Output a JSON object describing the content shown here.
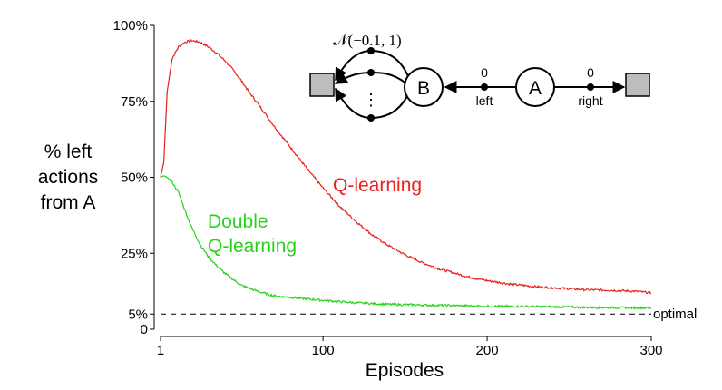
{
  "chart_data": {
    "type": "line",
    "xlabel": "Episodes",
    "ylabel_lines": [
      "% left",
      "actions",
      "from A"
    ],
    "xlim": [
      1,
      300
    ],
    "ylim": [
      0,
      100
    ],
    "x_ticks": [
      1,
      100,
      200,
      300
    ],
    "x_tick_labels": [
      "1",
      "100",
      "200",
      "300"
    ],
    "y_ticks": [
      0,
      5,
      25,
      50,
      75,
      100
    ],
    "y_tick_labels": [
      "0",
      "5%",
      "25%",
      "50%",
      "75%",
      "100%"
    ],
    "grid": false,
    "series": [
      {
        "name": "Q-learning",
        "color": "#e8201e",
        "x": [
          1,
          3,
          5,
          8,
          12,
          16,
          20,
          25,
          30,
          35,
          40,
          45,
          50,
          55,
          60,
          70,
          80,
          90,
          100,
          110,
          120,
          130,
          140,
          150,
          160,
          170,
          180,
          190,
          200,
          215,
          230,
          245,
          260,
          275,
          290,
          300
        ],
        "y": [
          50,
          55,
          78,
          89,
          93,
          94.5,
          95,
          94.5,
          93,
          91,
          88.5,
          85.5,
          82,
          78,
          74.5,
          67,
          60,
          53,
          46.5,
          40.5,
          35.5,
          31,
          27.5,
          24.5,
          22,
          20,
          18.5,
          17,
          16,
          14.8,
          14,
          13.5,
          13,
          12.8,
          12.5,
          12
        ]
      },
      {
        "name": "Double Q-learning",
        "color": "#26d21a",
        "x": [
          1,
          3,
          5,
          8,
          12,
          16,
          20,
          25,
          30,
          35,
          40,
          45,
          50,
          60,
          70,
          80,
          90,
          100,
          120,
          140,
          160,
          180,
          200,
          220,
          240,
          260,
          280,
          300
        ],
        "y": [
          50,
          50.5,
          50,
          48.5,
          45,
          39,
          33.5,
          28,
          24,
          21,
          18.5,
          16.5,
          14.5,
          12.5,
          11,
          10.5,
          10,
          9.5,
          8.7,
          8.2,
          8,
          7.8,
          7.6,
          7.5,
          7.4,
          7.2,
          7.1,
          7
        ]
      },
      {
        "name": "optimal",
        "style": "dashed",
        "color": "#000000",
        "x": [
          1,
          300
        ],
        "y": [
          5,
          5
        ]
      }
    ],
    "series_labels": {
      "q_learning": "Q-learning",
      "double_line1": "Double",
      "double_line2": "Q-learning",
      "optimal": "optimal"
    }
  },
  "mdp_diagram": {
    "state_b": "B",
    "state_a": "A",
    "distribution": "𝒩(−0.1, 1)",
    "reward_left": "0",
    "reward_right": "0",
    "action_left": "left",
    "action_right": "right",
    "vertical_dots": "⋮"
  }
}
